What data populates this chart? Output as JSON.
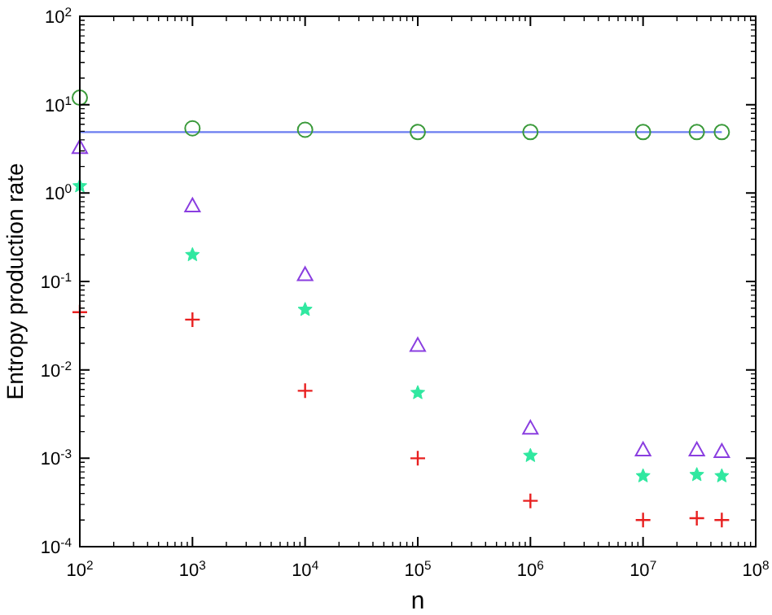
{
  "chart_data": {
    "type": "scatter",
    "xlabel": "n",
    "ylabel": "Entropy production rate",
    "log": "xy",
    "grid": false,
    "xlim": [
      100,
      100000000
    ],
    "ylim": [
      0.0001,
      100
    ],
    "xticks": [
      {
        "value": 100,
        "label": "10$^{2}$"
      },
      {
        "value": 1000,
        "label": "10$^{3}$"
      },
      {
        "value": 10000,
        "label": "10$^{4}$"
      },
      {
        "value": 100000,
        "label": "10$^{5}$"
      },
      {
        "value": 1000000,
        "label": "10$^{6}$"
      },
      {
        "value": 10000000,
        "label": "10$^{7}$"
      },
      {
        "value": 100000000,
        "label": "10$^{8}$"
      }
    ],
    "yticks": [
      {
        "value": 0.0001,
        "label": "10$^{-4}$"
      },
      {
        "value": 0.001,
        "label": "10$^{-3}$"
      },
      {
        "value": 0.01,
        "label": "10$^{-2}$"
      },
      {
        "value": 0.1,
        "label": "10$^{-1}$"
      },
      {
        "value": 1,
        "label": "10$^{0}$"
      },
      {
        "value": 10,
        "label": "10$^{1}$"
      },
      {
        "value": 100,
        "label": "10$^{2}$"
      }
    ],
    "x": [
      100,
      1000,
      10000,
      100000,
      1000000,
      10000000,
      30000000,
      50000000
    ],
    "series": [
      {
        "type": "line",
        "color": "#6a7cf0",
        "marker": "none",
        "line_style": "solid",
        "x": [
          100,
          50000000
        ],
        "values": [
          4.9,
          4.9
        ]
      },
      {
        "color": "#3a9a3a",
        "marker": "circle",
        "values": [
          12,
          5.4,
          5.2,
          4.9,
          4.9,
          4.9,
          4.9,
          4.9
        ]
      },
      {
        "color": "#8a3ee0",
        "marker": "triangle",
        "values": [
          3.3,
          0.72,
          0.12,
          0.019,
          0.0022,
          0.00125,
          0.00125,
          0.0012
        ]
      },
      {
        "color": "#30e8a0",
        "marker": "star",
        "values": [
          1.2,
          0.2,
          0.048,
          0.0055,
          0.00107,
          0.00063,
          0.00065,
          0.00063
        ]
      },
      {
        "color": "#e82020",
        "marker": "cross",
        "values": [
          0.045,
          0.037,
          0.0058,
          0.001,
          0.00033,
          0.0002,
          0.00021,
          0.0002
        ]
      }
    ]
  }
}
